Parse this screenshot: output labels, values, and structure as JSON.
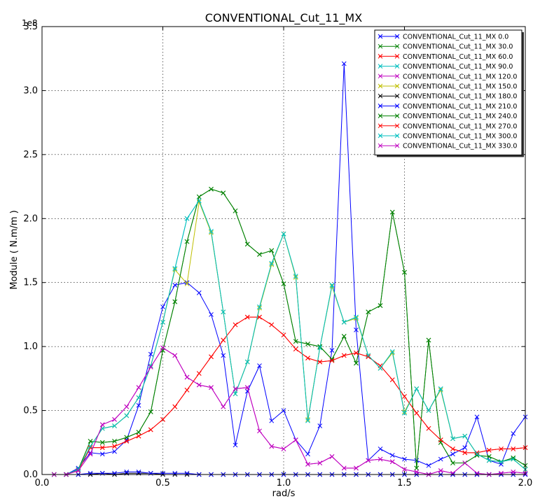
{
  "chart_data": {
    "type": "line",
    "title": "CONVENTIONAL_Cut_11_MX",
    "xlabel": "rad/s",
    "ylabel": "Module  ( N.m/m )",
    "y_multiplier_label": "1e8",
    "xlim": [
      0.0,
      2.0
    ],
    "ylim": [
      0.0,
      3.5
    ],
    "xticks": [
      "0.0",
      "0.5",
      "1.0",
      "1.5",
      "2.0"
    ],
    "yticks": [
      "0.0",
      "0.5",
      "1.0",
      "1.5",
      "2.0",
      "2.5",
      "3.0",
      "3.5"
    ],
    "grid": true,
    "legend_position": "top-right",
    "x": [
      0.05,
      0.1,
      0.15,
      0.2,
      0.25,
      0.3,
      0.35,
      0.4,
      0.45,
      0.5,
      0.55,
      0.6,
      0.65,
      0.7,
      0.75,
      0.8,
      0.85,
      0.9,
      0.95,
      1.0,
      1.05,
      1.1,
      1.15,
      1.2,
      1.25,
      1.3,
      1.35,
      1.4,
      1.45,
      1.5,
      1.55,
      1.6,
      1.65,
      1.7,
      1.75,
      1.8,
      1.85,
      1.9,
      1.95,
      2.0
    ],
    "series": [
      {
        "name": "CONVENTIONAL_Cut_11_MX 0.0",
        "color": "#0000ff",
        "values": [
          0,
          0,
          0.05,
          0.17,
          0.16,
          0.18,
          0.27,
          0.54,
          0.94,
          1.31,
          1.48,
          1.5,
          1.42,
          1.25,
          0.93,
          0.23,
          0.65,
          0.85,
          0.42,
          0.5,
          0.27,
          0.16,
          0.38,
          0.97,
          3.21,
          1.13,
          0.11,
          0.2,
          0.15,
          0.12,
          0.11,
          0.07,
          0.12,
          0.16,
          0.21,
          0.45,
          0.11,
          0.08,
          0.32,
          0.45
        ]
      },
      {
        "name": "CONVENTIONAL_Cut_11_MX 30.0",
        "color": "#008000",
        "values": [
          0,
          0,
          0.04,
          0.26,
          0.25,
          0.26,
          0.29,
          0.33,
          0.49,
          0.97,
          1.35,
          1.82,
          2.17,
          2.23,
          2.2,
          2.06,
          1.8,
          1.72,
          1.75,
          1.49,
          1.04,
          1.02,
          1.0,
          0.9,
          1.08,
          0.87,
          1.27,
          1.32,
          2.05,
          1.58,
          0.05,
          1.05,
          0.25,
          0.09,
          0.09,
          0.15,
          0.14,
          0.1,
          0.13,
          0.07
        ]
      },
      {
        "name": "CONVENTIONAL_Cut_11_MX 60.0",
        "color": "#ff0000",
        "values": [
          0,
          0,
          0.03,
          0.21,
          0.21,
          0.22,
          0.26,
          0.3,
          0.35,
          0.43,
          0.53,
          0.66,
          0.79,
          0.92,
          1.05,
          1.17,
          1.23,
          1.23,
          1.17,
          1.09,
          0.98,
          0.91,
          0.88,
          0.89,
          0.93,
          0.95,
          0.92,
          0.85,
          0.74,
          0.61,
          0.48,
          0.36,
          0.27,
          0.2,
          0.17,
          0.17,
          0.19,
          0.2,
          0.2,
          0.21
        ]
      },
      {
        "name": "CONVENTIONAL_Cut_11_MX 90.0",
        "color": "#00bfbf",
        "values": [
          0,
          0,
          0.04,
          0.22,
          0.36,
          0.38,
          0.46,
          0.6,
          0.85,
          1.19,
          1.61,
          2.0,
          2.14,
          1.9,
          1.27,
          0.63,
          0.88,
          1.31,
          1.65,
          1.88,
          1.55,
          0.42,
          0.99,
          1.48,
          1.19,
          1.23,
          0.93,
          0.83,
          0.96,
          0.48,
          0.67,
          0.5,
          0.67,
          0.28,
          0.3,
          0.16,
          0.11,
          0.1,
          0.12,
          0.04
        ]
      },
      {
        "name": "CONVENTIONAL_Cut_11_MX 120.0",
        "color": "#bf00bf",
        "values": [
          0,
          0,
          0.03,
          0.16,
          0.39,
          0.43,
          0.53,
          0.68,
          0.84,
          0.99,
          0.93,
          0.76,
          0.7,
          0.68,
          0.53,
          0.67,
          0.68,
          0.34,
          0.22,
          0.2,
          0.27,
          0.08,
          0.09,
          0.14,
          0.05,
          0.05,
          0.11,
          0.12,
          0.1,
          0.04,
          0.02,
          0.0,
          0.03,
          0.01,
          0.09,
          0.01,
          0.0,
          0.01,
          0.02,
          0.01
        ]
      },
      {
        "name": "CONVENTIONAL_Cut_11_MX 150.0",
        "color": "#bfbf00",
        "values": [
          0,
          0,
          0.04,
          0.22,
          0.36,
          0.38,
          0.46,
          0.6,
          0.85,
          1.19,
          1.6,
          1.49,
          2.13,
          1.89,
          1.27,
          0.63,
          0.88,
          1.3,
          1.64,
          1.88,
          1.54,
          0.43,
          0.99,
          1.47,
          1.19,
          1.22,
          0.93,
          0.83,
          0.95,
          0.49,
          0.67,
          0.5,
          0.66,
          0.28,
          0.3,
          0.16,
          0.11,
          0.1,
          0.12,
          0.04
        ]
      },
      {
        "name": "CONVENTIONAL_Cut_11_MX 180.0",
        "color": "#000000",
        "values": [
          0,
          0,
          0.0,
          0.0,
          0.01,
          0.0,
          0.01,
          0.01,
          0.01,
          0.0,
          0.0,
          0.0,
          0.0,
          0.0,
          0.0,
          0.0,
          0.0,
          0.0,
          0.0,
          0.0,
          0.0,
          0.0,
          0.0,
          0.0,
          0.0,
          0.0,
          0.0,
          0.0,
          0.0,
          0.0,
          0.0,
          0.0,
          0.0,
          0.0,
          0.0,
          0.0,
          0.0,
          0.0,
          0.0,
          0.0
        ]
      },
      {
        "name": "CONVENTIONAL_Cut_11_MX 210.0",
        "color": "#0000ff",
        "values": [
          0,
          0,
          0.0,
          0.01,
          0.01,
          0.01,
          0.02,
          0.02,
          0.01,
          0.01,
          0.01,
          0.01,
          0.0,
          0.0,
          0.0,
          0.0,
          0.0,
          0.0,
          0.0,
          0.0,
          0.0,
          0.0,
          0.0,
          0.0,
          0.0,
          0.0,
          0.0,
          0.0,
          0.0,
          0.0,
          0.0,
          0.0,
          0.0,
          0.0,
          0.0,
          0.0,
          0.0,
          0.0,
          0.0,
          0.0
        ]
      },
      {
        "name": "CONVENTIONAL_Cut_11_MX 240.0",
        "color": "#008000",
        "values": [
          0,
          0,
          0.04,
          0.26,
          0.25,
          0.26,
          0.29,
          0.33,
          0.49,
          0.97,
          1.35,
          1.82,
          2.17,
          2.23,
          2.2,
          2.06,
          1.8,
          1.72,
          1.75,
          1.49,
          1.04,
          1.02,
          1.0,
          0.9,
          1.08,
          0.87,
          1.27,
          1.32,
          2.05,
          1.58,
          0.05,
          1.05,
          0.25,
          0.09,
          0.09,
          0.15,
          0.14,
          0.1,
          0.13,
          0.07
        ]
      },
      {
        "name": "CONVENTIONAL_Cut_11_MX 270.0",
        "color": "#ff0000",
        "values": [
          0,
          0,
          0.03,
          0.21,
          0.21,
          0.22,
          0.26,
          0.3,
          0.35,
          0.43,
          0.53,
          0.66,
          0.79,
          0.92,
          1.05,
          1.17,
          1.23,
          1.23,
          1.17,
          1.09,
          0.98,
          0.91,
          0.88,
          0.89,
          0.93,
          0.95,
          0.92,
          0.85,
          0.74,
          0.61,
          0.48,
          0.36,
          0.27,
          0.2,
          0.17,
          0.17,
          0.19,
          0.2,
          0.2,
          0.21
        ]
      },
      {
        "name": "CONVENTIONAL_Cut_11_MX 300.0",
        "color": "#00bfbf",
        "values": [
          0,
          0,
          0.04,
          0.22,
          0.36,
          0.38,
          0.46,
          0.6,
          0.85,
          1.19,
          1.61,
          2.0,
          2.14,
          1.9,
          1.27,
          0.63,
          0.88,
          1.31,
          1.65,
          1.88,
          1.55,
          0.42,
          0.99,
          1.48,
          1.19,
          1.23,
          0.93,
          0.83,
          0.96,
          0.48,
          0.67,
          0.5,
          0.67,
          0.28,
          0.3,
          0.16,
          0.11,
          0.1,
          0.12,
          0.04
        ]
      },
      {
        "name": "CONVENTIONAL_Cut_11_MX 330.0",
        "color": "#bf00bf",
        "values": [
          0,
          0,
          0.03,
          0.16,
          0.39,
          0.43,
          0.53,
          0.68,
          0.84,
          0.99,
          0.93,
          0.76,
          0.7,
          0.68,
          0.53,
          0.67,
          0.68,
          0.34,
          0.22,
          0.2,
          0.27,
          0.08,
          0.09,
          0.14,
          0.05,
          0.05,
          0.11,
          0.12,
          0.1,
          0.04,
          0.02,
          0.0,
          0.03,
          0.01,
          0.09,
          0.01,
          0.0,
          0.01,
          0.02,
          0.01
        ]
      }
    ]
  }
}
